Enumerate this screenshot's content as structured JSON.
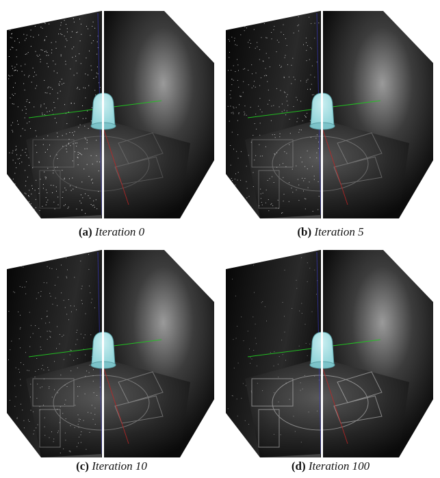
{
  "subfigures": [
    {
      "label": "(a)",
      "caption": "Iteration 0",
      "noise": 1.0
    },
    {
      "label": "(b)",
      "caption": "Iteration 5",
      "noise": 0.7
    },
    {
      "label": "(c)",
      "caption": "Iteration 10",
      "noise": 0.5
    },
    {
      "label": "(d)",
      "caption": "Iteration 100",
      "noise": 0.15
    }
  ],
  "colors": {
    "background": "#ffffff",
    "wall_dark": "#0d0d0d",
    "wall_light": "#2a2a2a",
    "lamp_shade": "#8fd3d8",
    "axis_green": "#22c022",
    "axis_red": "#c02424",
    "axis_blue": "#3a3ad0",
    "divider": "#ffffff"
  }
}
